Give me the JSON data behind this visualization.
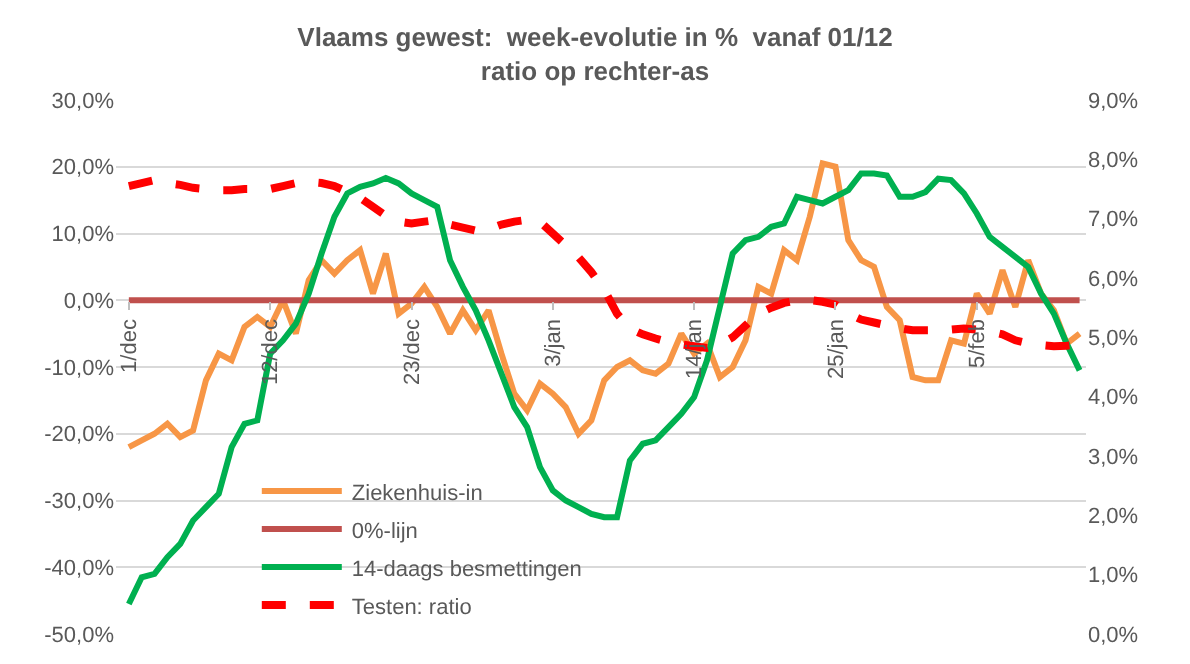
{
  "chart_data": {
    "type": "line",
    "title": "Vlaams gewest:  week-evolutie in %  vanaf 01/12",
    "subtitle": "ratio op rechter-as",
    "categories": [
      "1/dec",
      null,
      null,
      null,
      null,
      null,
      null,
      null,
      null,
      null,
      null,
      "12/dec",
      null,
      null,
      null,
      null,
      null,
      null,
      null,
      null,
      null,
      null,
      "23/dec",
      null,
      null,
      null,
      null,
      null,
      null,
      null,
      null,
      null,
      null,
      "3/jan",
      null,
      null,
      null,
      null,
      null,
      null,
      null,
      null,
      null,
      null,
      "14/jan",
      null,
      null,
      null,
      null,
      null,
      null,
      null,
      null,
      null,
      null,
      "25/jan",
      null,
      null,
      null,
      null,
      null,
      null,
      null,
      null,
      null,
      null,
      "5/feb",
      null,
      null,
      null,
      null,
      null,
      null,
      null,
      null
    ],
    "series": [
      {
        "name": "Ziekenhuis-in",
        "color": "#f79646",
        "values": [
          -22,
          -21,
          -20,
          -18.5,
          -20.5,
          -19.5,
          -12,
          -8,
          -9,
          -4,
          -2.5,
          -4,
          0,
          -5,
          3,
          6,
          4,
          6,
          7.5,
          1,
          7,
          -2,
          -0.5,
          2,
          -1,
          -5,
          -1.5,
          -4.5,
          -1.5,
          -8,
          -14,
          -16.5,
          -12.5,
          -14,
          -16,
          -20,
          -18,
          -12,
          -10,
          -9,
          -10.5,
          -11,
          -9.5,
          -5,
          -8,
          -6.5,
          -11.5,
          -10,
          -6,
          2,
          1,
          7.5,
          6,
          12.5,
          20.5,
          20,
          9,
          6,
          5,
          -1,
          -3,
          -11.5,
          -12,
          -12,
          -6,
          -6.5,
          1,
          -2,
          4.5,
          -1,
          6,
          1,
          -1.5,
          -6.5,
          -5
        ]
      },
      {
        "name": "0%-lijn",
        "color": "#c0504d",
        "values": [
          0,
          0,
          0,
          0,
          0,
          0,
          0,
          0,
          0,
          0,
          0,
          0,
          0,
          0,
          0,
          0,
          0,
          0,
          0,
          0,
          0,
          0,
          0,
          0,
          0,
          0,
          0,
          0,
          0,
          0,
          0,
          0,
          0,
          0,
          0,
          0,
          0,
          0,
          0,
          0,
          0,
          0,
          0,
          0,
          0,
          0,
          0,
          0,
          0,
          0,
          0,
          0,
          0,
          0,
          0,
          0,
          0,
          0,
          0,
          0,
          0,
          0,
          0,
          0,
          0,
          0,
          0,
          0,
          0,
          0,
          0,
          0,
          0,
          0,
          0
        ]
      },
      {
        "name": "14-daags besmettingen",
        "color": "#00b050",
        "values": [
          -45.5,
          -41.5,
          -41,
          -38.5,
          -36.5,
          -33,
          -31,
          -29,
          -22,
          -18.5,
          -18,
          -8,
          -6,
          -3.5,
          1,
          7,
          12.5,
          16,
          17,
          17.5,
          18.3,
          17.5,
          16,
          15,
          14,
          6,
          2,
          -1.5,
          -6,
          -11,
          -16,
          -19,
          -25,
          -28.5,
          -30,
          -31,
          -32,
          -32.5,
          -32.5,
          -24,
          -21.5,
          -21,
          -19,
          -17,
          -14.5,
          -9,
          -1,
          7,
          9,
          9.5,
          11,
          11.5,
          15.5,
          15,
          14.5,
          15.5,
          16.5,
          19,
          19,
          18.7,
          15.5,
          15.5,
          16.2,
          18.2,
          18,
          16,
          13,
          9.5,
          8,
          6.5,
          5,
          1,
          -2,
          -6.5,
          -10.5
        ]
      },
      {
        "name": "Testen: ratio",
        "color": "#ff0000",
        "axis": "y2",
        "line_style": "dashed",
        "values": [
          7.55,
          7.6,
          7.65,
          7.6,
          7.57,
          7.52,
          7.5,
          7.48,
          7.48,
          7.5,
          7.5,
          7.5,
          7.55,
          7.6,
          7.62,
          7.6,
          7.55,
          7.45,
          7.35,
          7.2,
          7.05,
          6.95,
          6.92,
          6.95,
          6.98,
          6.9,
          6.85,
          6.8,
          6.82,
          6.9,
          6.95,
          6.98,
          6.95,
          6.75,
          6.55,
          6.35,
          6.1,
          5.8,
          5.4,
          5.15,
          5.05,
          4.98,
          4.92,
          4.88,
          4.85,
          4.82,
          4.88,
          5.0,
          5.2,
          5.4,
          5.5,
          5.58,
          5.62,
          5.63,
          5.6,
          5.55,
          5.4,
          5.3,
          5.25,
          5.2,
          5.15,
          5.12,
          5.12,
          5.12,
          5.13,
          5.15,
          5.13,
          5.1,
          5.05,
          4.95,
          4.9,
          4.87,
          4.85,
          4.86,
          4.88
        ]
      }
    ],
    "ylim": [
      -50,
      30
    ],
    "yticks": [
      {
        "value": -50,
        "label": "-50,0%"
      },
      {
        "value": -40,
        "label": "-40,0%"
      },
      {
        "value": -30,
        "label": "-30,0%"
      },
      {
        "value": -20,
        "label": "-20,0%"
      },
      {
        "value": -10,
        "label": "-10,0%"
      },
      {
        "value": 0,
        "label": "0,0%"
      },
      {
        "value": 10,
        "label": "10,0%"
      },
      {
        "value": 20,
        "label": "20,0%"
      },
      {
        "value": 30,
        "label": "30,0%"
      }
    ],
    "y2lim": [
      0,
      9
    ],
    "y2ticks": [
      {
        "value": 0,
        "label": "0,0%"
      },
      {
        "value": 1,
        "label": "1,0%"
      },
      {
        "value": 2,
        "label": "2,0%"
      },
      {
        "value": 3,
        "label": "3,0%"
      },
      {
        "value": 4,
        "label": "4,0%"
      },
      {
        "value": 5,
        "label": "5,0%"
      },
      {
        "value": 6,
        "label": "6,0%"
      },
      {
        "value": 7,
        "label": "7,0%"
      },
      {
        "value": 8,
        "label": "8,0%"
      },
      {
        "value": 9,
        "label": "9,0%"
      }
    ],
    "grid": "y",
    "legend": "bottom left",
    "marker": "none",
    "line_style": "solid"
  }
}
